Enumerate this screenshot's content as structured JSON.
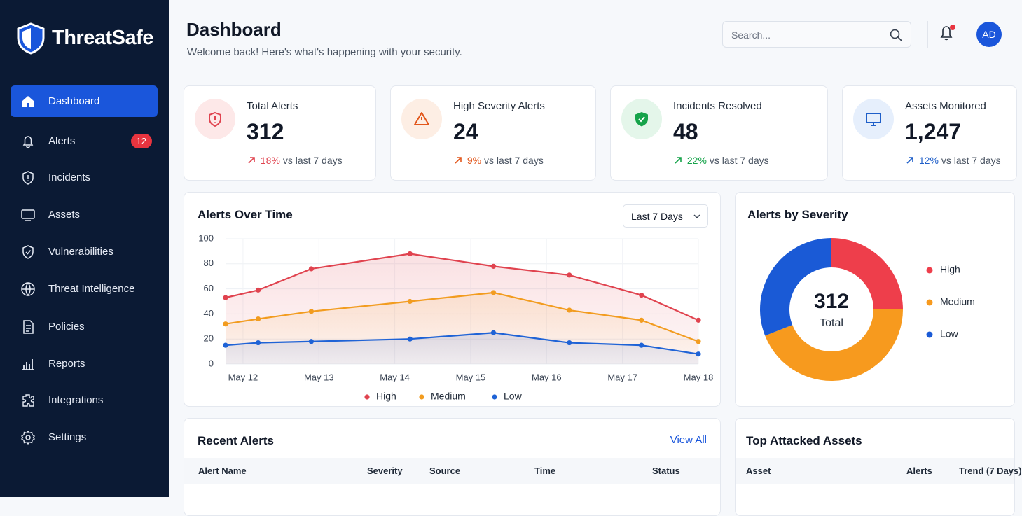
{
  "brand": "ThreatSafe",
  "nav": [
    {
      "label": "Dashboard"
    },
    {
      "label": "Alerts",
      "badge": 12
    },
    {
      "label": "Incidents"
    },
    {
      "label": "Assets"
    },
    {
      "label": "Vulnerabilities"
    },
    {
      "label": "Threat Intelligence"
    },
    {
      "label": "Policies"
    },
    {
      "label": "Reports"
    },
    {
      "label": "Integrations"
    },
    {
      "label": "Settings"
    }
  ],
  "header": {
    "title": "Dashboard",
    "subtitle": "Welcome back! Here's what's happening with your security.",
    "search_placeholder": "Search...",
    "avatar": "AD"
  },
  "stats": [
    {
      "label": "Total Alerts",
      "value": "312",
      "change": "18%",
      "compare": "vs last 7 days"
    },
    {
      "label": "High Severity Alerts",
      "value": "24",
      "change": "9%",
      "compare": "vs last 7 days"
    },
    {
      "label": "Incidents Resolved",
      "value": "48",
      "change": "22%",
      "compare": "vs last 7 days"
    },
    {
      "label": "Assets Monitored",
      "value": "1,247",
      "change": "12%",
      "compare": "vs last 7 days"
    }
  ],
  "alerts_chart": {
    "type": "line",
    "title": "Alerts Over Time",
    "range_select": "Last 7 Days",
    "x": [
      -0.23,
      0.2,
      0.9,
      2.2,
      3.3,
      4.3,
      5.25,
      6
    ],
    "xlim": [
      -0.23,
      6
    ],
    "xticks": [
      {
        "value": 0,
        "label": "May 12"
      },
      {
        "value": 1,
        "label": "May 13"
      },
      {
        "value": 2,
        "label": "May 14"
      },
      {
        "value": 3,
        "label": "May 15"
      },
      {
        "value": 4,
        "label": "May 16"
      },
      {
        "value": 5,
        "label": "May 17"
      },
      {
        "value": 6,
        "label": "May 18"
      }
    ],
    "ylim": [
      0,
      100
    ],
    "yticks": [
      0,
      20,
      40,
      60,
      80,
      100
    ],
    "grid": true,
    "series": [
      {
        "name": "High",
        "color": "#e0434f",
        "values": [
          53,
          59,
          76,
          88,
          78,
          71,
          55,
          35
        ]
      },
      {
        "name": "Medium",
        "color": "#f29c1f",
        "values": [
          32,
          36,
          42,
          50,
          57,
          43,
          35,
          18
        ]
      },
      {
        "name": "Low",
        "color": "#1f63d6",
        "values": [
          15,
          17,
          18,
          20,
          25,
          17,
          15,
          8
        ]
      }
    ]
  },
  "severity_chart": {
    "type": "donut",
    "title": "Alerts by Severity",
    "center_value": "312",
    "center_label": "Total",
    "categories": [
      "High",
      "Medium",
      "Low"
    ],
    "values": [
      25,
      44,
      31
    ],
    "colors": [
      "#ee3e4b",
      "#f79a1e",
      "#1a5ad6"
    ]
  },
  "recent_alerts": {
    "title": "Recent Alerts",
    "link": "View All",
    "columns": [
      "Alert Name",
      "Severity",
      "Source",
      "Time",
      "Status"
    ]
  },
  "top_assets": {
    "title": "Top Attacked Assets",
    "columns": [
      "Asset",
      "Alerts",
      "Trend (7 Days)"
    ]
  }
}
